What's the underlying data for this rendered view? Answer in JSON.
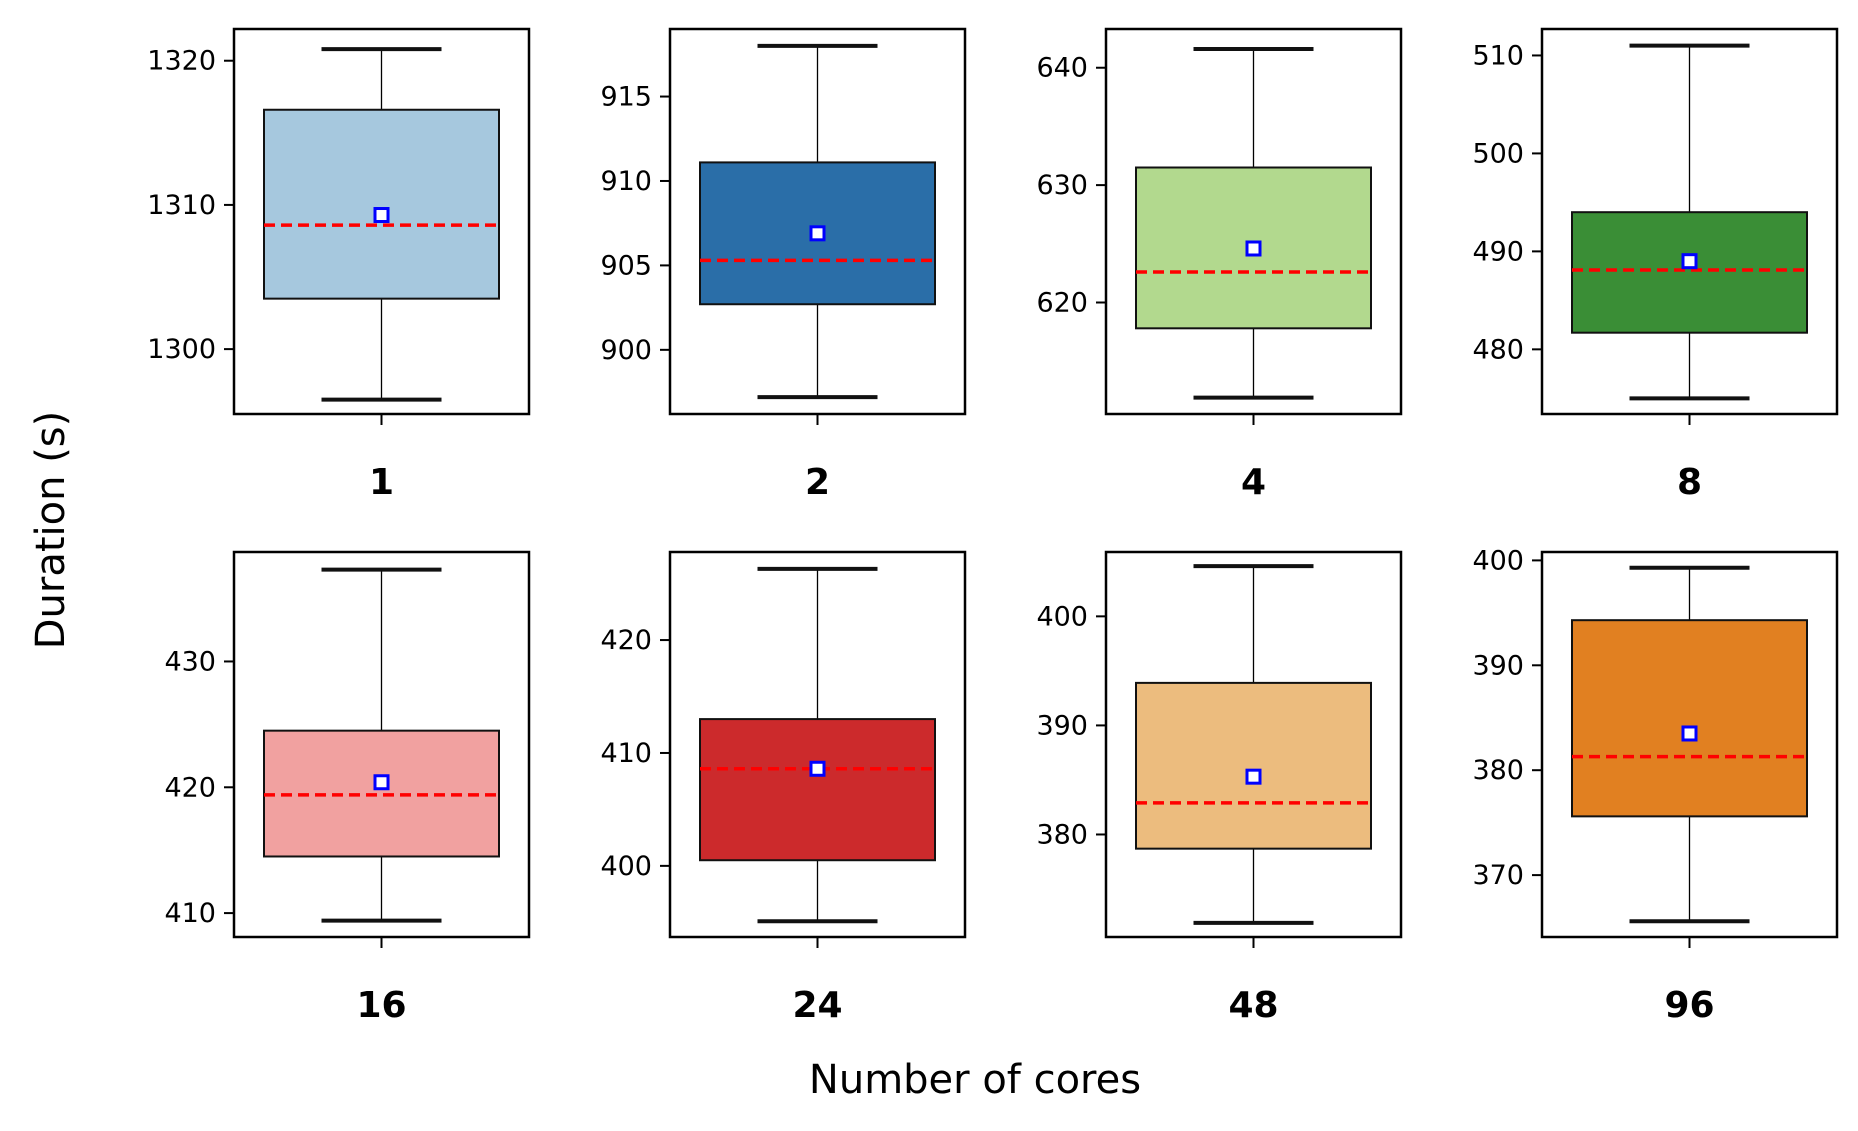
{
  "chart_data": {
    "type": "box",
    "xlabel": "Number of cores",
    "ylabel": "Duration (s)",
    "legend": "none",
    "grid": false,
    "mean_marker": "blue open square",
    "median_line": "red dashed",
    "panels": [
      {
        "category": "1",
        "color": "#a6c8de",
        "min": 1296.5,
        "q1": 1303.5,
        "median": 1308.6,
        "mean": 1309.3,
        "q3": 1316.6,
        "max": 1320.8,
        "ylim": [
          1295.5,
          1322.2
        ],
        "yticks": [
          1300,
          1310,
          1320
        ]
      },
      {
        "category": "2",
        "color": "#2a6ea8",
        "min": 897.2,
        "q1": 902.7,
        "median": 905.3,
        "mean": 906.9,
        "q3": 911.1,
        "max": 918.0,
        "ylim": [
          896.2,
          919.0
        ],
        "yticks": [
          900,
          905,
          910,
          915
        ]
      },
      {
        "category": "4",
        "color": "#b2d98e",
        "min": 611.9,
        "q1": 617.8,
        "median": 622.6,
        "mean": 624.6,
        "q3": 631.5,
        "max": 641.6,
        "ylim": [
          610.5,
          643.3
        ],
        "yticks": [
          620,
          630,
          640
        ]
      },
      {
        "category": "8",
        "color": "#3a8e36",
        "min": 475.0,
        "q1": 481.7,
        "median": 488.1,
        "mean": 489.0,
        "q3": 494.0,
        "max": 511.0,
        "ylim": [
          473.4,
          512.7
        ],
        "yticks": [
          480,
          490,
          500,
          510
        ]
      },
      {
        "category": "16",
        "color": "#f1a1a0",
        "min": 409.4,
        "q1": 414.5,
        "median": 419.4,
        "mean": 420.4,
        "q3": 424.5,
        "max": 437.3,
        "ylim": [
          408.1,
          438.7
        ],
        "yticks": [
          410,
          420,
          430
        ]
      },
      {
        "category": "24",
        "color": "#cc2a2c",
        "min": 395.1,
        "q1": 400.5,
        "median": 408.6,
        "mean": 408.6,
        "q3": 413.0,
        "max": 426.3,
        "ylim": [
          393.7,
          427.8
        ],
        "yticks": [
          400,
          410,
          420
        ]
      },
      {
        "category": "48",
        "color": "#ecbc7e",
        "min": 371.9,
        "q1": 378.7,
        "median": 382.9,
        "mean": 385.3,
        "q3": 393.9,
        "max": 404.6,
        "ylim": [
          370.6,
          405.9
        ],
        "yticks": [
          380,
          390,
          400
        ]
      },
      {
        "category": "96",
        "color": "#e18021",
        "min": 365.6,
        "q1": 375.6,
        "median": 381.3,
        "mean": 383.5,
        "q3": 394.3,
        "max": 399.3,
        "ylim": [
          364.1,
          400.8
        ],
        "yticks": [
          370,
          380,
          390,
          400
        ]
      }
    ]
  }
}
